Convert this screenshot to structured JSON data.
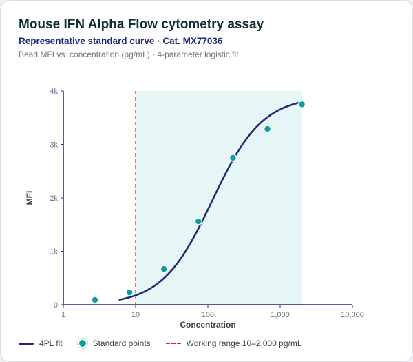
{
  "title": "Mouse IFN Alpha Flow cytometry assay",
  "subtitle": "Representative standard curve · Cat. MX77036",
  "note": "Bead MFI vs. concentration (pg/mL) · 4-parameter logistic fit",
  "legend": {
    "fit": "4PL fit",
    "points": "Standard points",
    "range": "Working range 10–2,000 pg/mL"
  },
  "colors": {
    "fit_line": "#1f2a78",
    "points": "#0f9e9e",
    "range_line": "#c62f3a",
    "range_fill": "#e6f5f5",
    "axis": "#1f2a78"
  },
  "chart_data": {
    "type": "scatter",
    "xlabel": "Concentration",
    "ylabel": "MFI",
    "x_scale": "log",
    "xlim": [
      1,
      10000
    ],
    "ylim": [
      0,
      4000
    ],
    "x_ticks": [
      1,
      10,
      100,
      1000,
      10000
    ],
    "x_tick_labels": [
      "1",
      "10",
      "100",
      "1,000",
      "10,000"
    ],
    "y_ticks": [
      0,
      1000,
      2000,
      3000,
      4000
    ],
    "y_tick_labels": [
      "0",
      "1k",
      "2k",
      "3k",
      "4k"
    ],
    "working_range": [
      10,
      2000
    ],
    "series": [
      {
        "name": "Standard points",
        "kind": "points",
        "x": [
          2.74,
          8.23,
          24.7,
          74.1,
          222,
          667,
          2000
        ],
        "y": [
          90,
          230,
          670,
          1560,
          2750,
          3290,
          3750
        ]
      },
      {
        "name": "4PL fit",
        "kind": "curve",
        "x_range": [
          6,
          2000
        ],
        "params": {
          "bottom": 0,
          "top": 3900,
          "ec50": 115,
          "hill": 1.25
        }
      }
    ],
    "grid": false,
    "legend_position": "bottom"
  }
}
